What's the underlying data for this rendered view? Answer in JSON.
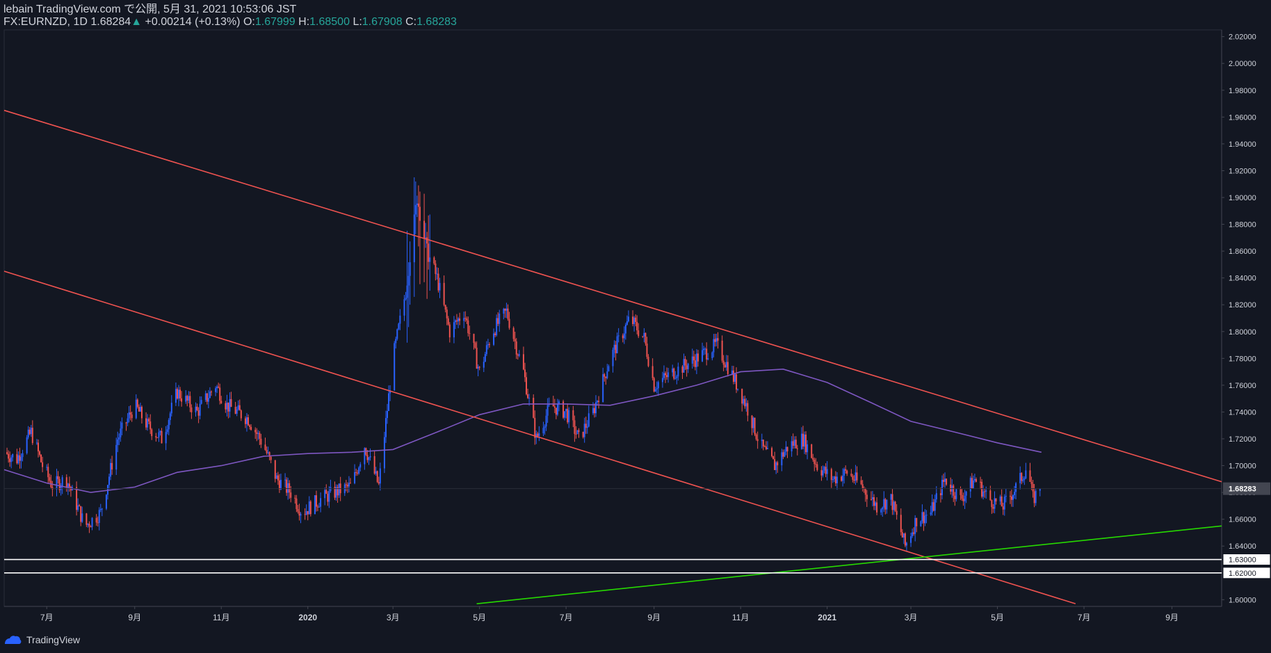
{
  "header": {
    "line1": "lebain TradingView.com で公開, 5月 31, 2021 10:53:06 JST",
    "symbol": "FX:EURNZD, 1D",
    "price": "1.68284",
    "change": "+0.00214 (+0.13%)",
    "o_label": "O:",
    "o": "1.67999",
    "h_label": "H:",
    "h": "1.68500",
    "l_label": "L:",
    "l": "1.67908",
    "c_label": "C:",
    "c": "1.68283"
  },
  "footer": {
    "brand": "TradingView"
  },
  "colors": {
    "background": "#131722",
    "up": "#2962ff",
    "down": "#ef5350",
    "ma": "#7e57c2",
    "trend": "#f05350",
    "support": "#26d900",
    "hline": "#ffffff"
  },
  "chart_data": {
    "type": "candlestick",
    "symbol": "FX:EURNZD",
    "interval": "1D",
    "ylim": [
      1.595,
      2.025
    ],
    "xlim": [
      "2019-06-01",
      "2021-10-06"
    ],
    "y_ticks": [
      "1.60000",
      "1.62000",
      "1.64000",
      "1.66000",
      "1.68000",
      "1.70000",
      "1.72000",
      "1.74000",
      "1.76000",
      "1.78000",
      "1.80000",
      "1.82000",
      "1.84000",
      "1.86000",
      "1.88000",
      "1.90000",
      "1.92000",
      "1.94000",
      "1.96000",
      "1.98000",
      "2.00000",
      "2.02000"
    ],
    "x_ticks": [
      {
        "date": "2019-07-01",
        "label": "7月"
      },
      {
        "date": "2019-09-01",
        "label": "9月"
      },
      {
        "date": "2019-11-01",
        "label": "11月"
      },
      {
        "date": "2020-01-01",
        "label": "2020"
      },
      {
        "date": "2020-03-01",
        "label": "3月"
      },
      {
        "date": "2020-05-01",
        "label": "5月"
      },
      {
        "date": "2020-07-01",
        "label": "7月"
      },
      {
        "date": "2020-09-01",
        "label": "9月"
      },
      {
        "date": "2020-11-01",
        "label": "11月"
      },
      {
        "date": "2021-01-01",
        "label": "2021"
      },
      {
        "date": "2021-03-01",
        "label": "3月"
      },
      {
        "date": "2021-05-01",
        "label": "5月"
      },
      {
        "date": "2021-07-01",
        "label": "7月"
      },
      {
        "date": "2021-09-01",
        "label": "9月"
      }
    ],
    "price_path": [
      {
        "date": "2019-06-01",
        "close": 1.71
      },
      {
        "date": "2019-06-10",
        "close": 1.705
      },
      {
        "date": "2019-06-20",
        "close": 1.725
      },
      {
        "date": "2019-06-28",
        "close": 1.7
      },
      {
        "date": "2019-07-05",
        "close": 1.685
      },
      {
        "date": "2019-07-15",
        "close": 1.69
      },
      {
        "date": "2019-07-28",
        "close": 1.655
      },
      {
        "date": "2019-08-08",
        "close": 1.665
      },
      {
        "date": "2019-08-20",
        "close": 1.72
      },
      {
        "date": "2019-09-01",
        "close": 1.745
      },
      {
        "date": "2019-09-10",
        "close": 1.73
      },
      {
        "date": "2019-09-20",
        "close": 1.72
      },
      {
        "date": "2019-10-01",
        "close": 1.755
      },
      {
        "date": "2019-10-15",
        "close": 1.74
      },
      {
        "date": "2019-10-28",
        "close": 1.76
      },
      {
        "date": "2019-11-05",
        "close": 1.745
      },
      {
        "date": "2019-11-20",
        "close": 1.735
      },
      {
        "date": "2019-12-01",
        "close": 1.715
      },
      {
        "date": "2019-12-10",
        "close": 1.69
      },
      {
        "date": "2019-12-20",
        "close": 1.68
      },
      {
        "date": "2019-12-28",
        "close": 1.665
      },
      {
        "date": "2020-01-10",
        "close": 1.675
      },
      {
        "date": "2020-01-20",
        "close": 1.68
      },
      {
        "date": "2020-02-01",
        "close": 1.685
      },
      {
        "date": "2020-02-10",
        "close": 1.715
      },
      {
        "date": "2020-02-20",
        "close": 1.685
      },
      {
        "date": "2020-03-01",
        "close": 1.78
      },
      {
        "date": "2020-03-10",
        "close": 1.83
      },
      {
        "date": "2020-03-18",
        "close": 1.9
      },
      {
        "date": "2020-03-25",
        "close": 1.86
      },
      {
        "date": "2020-04-01",
        "close": 1.84
      },
      {
        "date": "2020-04-10",
        "close": 1.8
      },
      {
        "date": "2020-04-20",
        "close": 1.815
      },
      {
        "date": "2020-05-01",
        "close": 1.77
      },
      {
        "date": "2020-05-10",
        "close": 1.8
      },
      {
        "date": "2020-05-20",
        "close": 1.815
      },
      {
        "date": "2020-06-01",
        "close": 1.77
      },
      {
        "date": "2020-06-10",
        "close": 1.72
      },
      {
        "date": "2020-06-20",
        "close": 1.745
      },
      {
        "date": "2020-07-01",
        "close": 1.74
      },
      {
        "date": "2020-07-10",
        "close": 1.72
      },
      {
        "date": "2020-07-20",
        "close": 1.74
      },
      {
        "date": "2020-08-01",
        "close": 1.78
      },
      {
        "date": "2020-08-15",
        "close": 1.81
      },
      {
        "date": "2020-08-25",
        "close": 1.795
      },
      {
        "date": "2020-09-01",
        "close": 1.76
      },
      {
        "date": "2020-09-15",
        "close": 1.77
      },
      {
        "date": "2020-10-01",
        "close": 1.78
      },
      {
        "date": "2020-10-15",
        "close": 1.79
      },
      {
        "date": "2020-10-25",
        "close": 1.77
      },
      {
        "date": "2020-11-05",
        "close": 1.745
      },
      {
        "date": "2020-11-15",
        "close": 1.715
      },
      {
        "date": "2020-11-25",
        "close": 1.7
      },
      {
        "date": "2020-12-05",
        "close": 1.715
      },
      {
        "date": "2020-12-15",
        "close": 1.72
      },
      {
        "date": "2020-12-25",
        "close": 1.7
      },
      {
        "date": "2021-01-05",
        "close": 1.69
      },
      {
        "date": "2021-01-15",
        "close": 1.695
      },
      {
        "date": "2021-01-25",
        "close": 1.685
      },
      {
        "date": "2021-02-05",
        "close": 1.67
      },
      {
        "date": "2021-02-15",
        "close": 1.675
      },
      {
        "date": "2021-02-25",
        "close": 1.64
      },
      {
        "date": "2021-03-05",
        "close": 1.66
      },
      {
        "date": "2021-03-15",
        "close": 1.665
      },
      {
        "date": "2021-03-25",
        "close": 1.69
      },
      {
        "date": "2021-04-05",
        "close": 1.675
      },
      {
        "date": "2021-04-15",
        "close": 1.69
      },
      {
        "date": "2021-04-25",
        "close": 1.675
      },
      {
        "date": "2021-05-05",
        "close": 1.67
      },
      {
        "date": "2021-05-15",
        "close": 1.685
      },
      {
        "date": "2021-05-22",
        "close": 1.7
      },
      {
        "date": "2021-05-26",
        "close": 1.675
      },
      {
        "date": "2021-05-31",
        "close": 1.68283
      }
    ],
    "moving_average": [
      {
        "date": "2019-06-01",
        "value": 1.697
      },
      {
        "date": "2019-07-01",
        "value": 1.687
      },
      {
        "date": "2019-08-01",
        "value": 1.68
      },
      {
        "date": "2019-09-01",
        "value": 1.684
      },
      {
        "date": "2019-10-01",
        "value": 1.695
      },
      {
        "date": "2019-11-01",
        "value": 1.7
      },
      {
        "date": "2019-12-01",
        "value": 1.707
      },
      {
        "date": "2020-01-01",
        "value": 1.709
      },
      {
        "date": "2020-02-01",
        "value": 1.71
      },
      {
        "date": "2020-03-01",
        "value": 1.712
      },
      {
        "date": "2020-04-01",
        "value": 1.725
      },
      {
        "date": "2020-05-01",
        "value": 1.738
      },
      {
        "date": "2020-06-01",
        "value": 1.746
      },
      {
        "date": "2020-07-01",
        "value": 1.746
      },
      {
        "date": "2020-08-01",
        "value": 1.745
      },
      {
        "date": "2020-09-01",
        "value": 1.752
      },
      {
        "date": "2020-10-01",
        "value": 1.76
      },
      {
        "date": "2020-11-01",
        "value": 1.77
      },
      {
        "date": "2020-12-01",
        "value": 1.772
      },
      {
        "date": "2021-01-01",
        "value": 1.762
      },
      {
        "date": "2021-02-01",
        "value": 1.747
      },
      {
        "date": "2021-03-01",
        "value": 1.733
      },
      {
        "date": "2021-04-01",
        "value": 1.725
      },
      {
        "date": "2021-05-01",
        "value": 1.717
      },
      {
        "date": "2021-06-01",
        "value": 1.71
      }
    ],
    "trend_lines": [
      {
        "name": "channel-upper",
        "start": {
          "date": "2019-06-01",
          "value": 1.965
        },
        "end": {
          "date": "2021-10-06",
          "value": 1.688
        }
      },
      {
        "name": "channel-lower",
        "start": {
          "date": "2019-06-01",
          "value": 1.845
        },
        "end": {
          "date": "2021-06-25",
          "value": 1.597
        }
      },
      {
        "name": "support-line",
        "start": {
          "date": "2020-04-29",
          "value": 1.597
        },
        "end": {
          "date": "2021-10-06",
          "value": 1.655
        }
      }
    ],
    "horizontal_lines": [
      1.63,
      1.62
    ],
    "last_price": {
      "value": 1.68283,
      "label": "1.68283"
    }
  }
}
